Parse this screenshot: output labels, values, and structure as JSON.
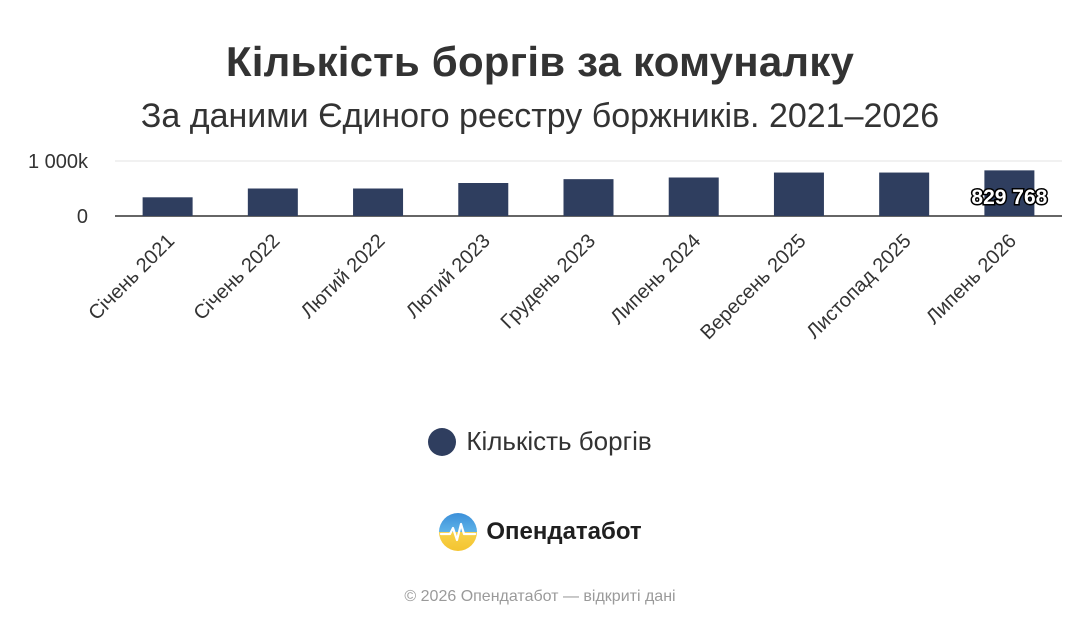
{
  "title": "Кількість боргів за комуналку",
  "subtitle": "За даними Єдиного реєстру боржників. 2021–2026",
  "chart_data": {
    "type": "bar",
    "title": "Кількість боргів за комуналку",
    "subtitle": "За даними Єдиного реєстру боржників. 2021–2026",
    "xlabel": "",
    "ylabel": "",
    "categories": [
      "Січень 2021",
      "Січень 2022",
      "Лютий 2022",
      "Лютий 2023",
      "Грудень 2023",
      "Липень 2024",
      "Вересень 2025",
      "Листопад 2025",
      "Липень 2026"
    ],
    "series": [
      {
        "name": "Кількість боргів",
        "color": "#2f3e5f",
        "values": [
          340000,
          500000,
          500000,
          600000,
          670000,
          700000,
          790000,
          790000,
          829768
        ]
      }
    ],
    "ylim": [
      0,
      1000000
    ],
    "yticks": [
      {
        "value": 0,
        "label": "0"
      },
      {
        "value": 1000000,
        "label": "1 000k"
      }
    ],
    "data_labels": [
      {
        "index": 8,
        "label": "829 768"
      }
    ],
    "grid": true,
    "legend": "bottom"
  },
  "legend": {
    "label": "Кількість боргів",
    "color": "#2f3e5f"
  },
  "brand": {
    "name": "Опендатабот",
    "logo_icon": "opendatabot-logo-icon"
  },
  "footer": "© 2026 Опендатабот — відкриті дані"
}
